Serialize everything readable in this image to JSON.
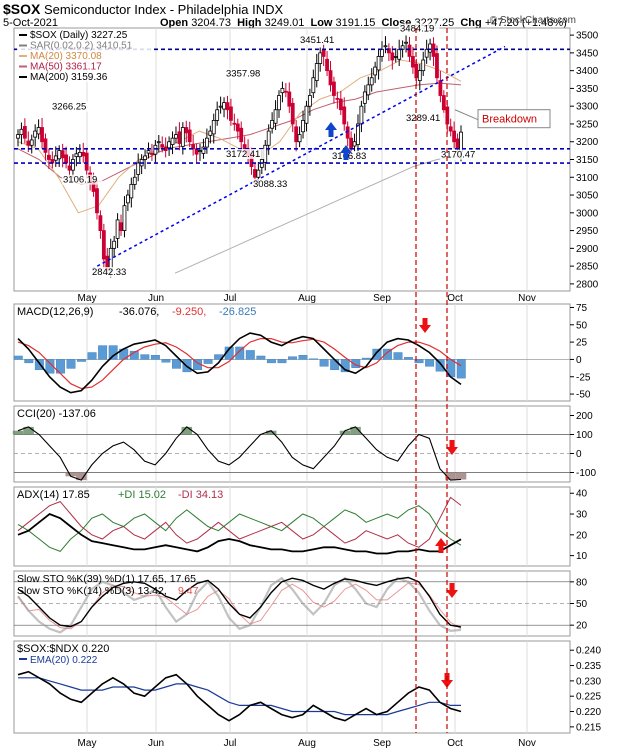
{
  "header": {
    "symbol": "$SOX",
    "name": "Semiconductor Index - Philadelphia",
    "exchange": "INDX",
    "date": "5-Oct-2021",
    "open_label": "Open",
    "open": "3204.73",
    "high_label": "High",
    "high": "3249.01",
    "low_label": "Low",
    "low": "3191.15",
    "close_label": "Close",
    "close": "3227.25",
    "chg_label": "Chg",
    "chg": "+47.20 (+1.48%)",
    "credit": "© StockCharts.com",
    "legend": [
      {
        "text": "$SOX (Daily) 3227.25",
        "color": "#000000"
      },
      {
        "text": "SAR(0.02,0.2) 3410.51",
        "color": "#808080"
      },
      {
        "text": "MA(20) 3370.08",
        "color": "#e0a060"
      },
      {
        "text": "MA(50) 3361.17",
        "color": "#b0204a"
      },
      {
        "text": "MA(200) 3159.36",
        "color": "#000000"
      }
    ]
  },
  "colors": {
    "up_candle": "#000000",
    "down_candle": "#cc0033",
    "support": "#0000bb",
    "trendline": "#0000ee",
    "vline": "#cc0000",
    "ma20": "#e0b080",
    "ma50": "#c06070",
    "ma200": "#b0b0b0",
    "macd": "#000000",
    "signal": "#e03030",
    "histogram": "#5b9bd5",
    "cci_fill": "#6a8f6a",
    "cci_neg_fill": "#a08080",
    "adx": "#000000",
    "plus_di": "#2e7d32",
    "minus_di": "#b0304a",
    "sto_k": "#000000",
    "sto_d": "#e05050",
    "ema": "#1a3a9a",
    "marker_red": "#ee1111",
    "marker_blue": "#1144cc"
  },
  "chart_data": [
    {
      "type": "candlestick",
      "title": "$SOX (Daily) 3227.25",
      "x_months": [
        "May",
        "Jun",
        "Jul",
        "Aug",
        "Sep",
        "Oct",
        "Nov"
      ],
      "ylim": [
        2780,
        3520
      ],
      "yticks": [
        2800,
        2850,
        2900,
        2950,
        3000,
        3050,
        3100,
        3150,
        3200,
        3250,
        3300,
        3350,
        3400,
        3450,
        3500
      ],
      "closes_approx": [
        3220,
        3235,
        3210,
        3190,
        3205,
        3230,
        3240,
        3200,
        3170,
        3150,
        3140,
        3160,
        3175,
        3155,
        3140,
        3120,
        3150,
        3166,
        3170,
        3160,
        3120,
        3090,
        3060,
        3000,
        2950,
        2870,
        2845,
        2900,
        2920,
        2980,
        2950,
        3020,
        3050,
        3080,
        3100,
        3140,
        3150,
        3160,
        3175,
        3165,
        3190,
        3200,
        3185,
        3175,
        3200,
        3210,
        3220,
        3195,
        3240,
        3225,
        3200,
        3180,
        3165,
        3175,
        3185,
        3210,
        3230,
        3260,
        3290,
        3300,
        3310,
        3290,
        3260,
        3250,
        3230,
        3200,
        3180,
        3160,
        3130,
        3100,
        3120,
        3150,
        3190,
        3230,
        3260,
        3290,
        3330,
        3350,
        3340,
        3300,
        3250,
        3200,
        3220,
        3260,
        3300,
        3330,
        3380,
        3420,
        3450,
        3440,
        3400,
        3360,
        3330,
        3320,
        3290,
        3250,
        3210,
        3180,
        3200,
        3250,
        3300,
        3340,
        3360,
        3380,
        3410,
        3440,
        3460,
        3470,
        3450,
        3430,
        3440,
        3460,
        3470,
        3480,
        3440,
        3410,
        3380,
        3400,
        3430,
        3460,
        3475,
        3440,
        3380,
        3330,
        3290,
        3250,
        3230,
        3200,
        3180,
        3227
      ],
      "annotations": [
        "3266.25",
        "3106.19",
        "2842.33",
        "3357.98",
        "3172.41",
        "3088.33",
        "3451.41",
        "3166.83",
        "3484.19",
        "3289.41",
        "3170.47",
        "Breakdown"
      ],
      "support_levels": [
        3180,
        3140
      ],
      "resistance_level": 3460,
      "trendline": {
        "from": [
          0,
          2842
        ],
        "to": [
          1,
          3460
        ]
      },
      "ma20_approx": [
        3200,
        3180,
        3100,
        3000,
        3020,
        3100,
        3150,
        3180,
        3200,
        3230,
        3210,
        3180,
        3160,
        3200,
        3280,
        3320,
        3340,
        3380,
        3400,
        3430,
        3420,
        3400,
        3370
      ],
      "ma50_approx": [
        3180,
        3150,
        3100,
        3080,
        3090,
        3120,
        3150,
        3180,
        3190,
        3200,
        3210,
        3220,
        3240,
        3260,
        3290,
        3310,
        3320,
        3340,
        3350,
        3360,
        3365,
        3360
      ],
      "ma200_approx": [
        2830,
        2860,
        2890,
        2920,
        2950,
        2980,
        3010,
        3040,
        3070,
        3100,
        3130,
        3150,
        3160
      ],
      "sar_last": 3410.51
    },
    {
      "type": "line",
      "title": "MACD(12,26,9) -36.076, -9.250, -26.825",
      "ylim": [
        -60,
        80
      ],
      "yticks": [
        -50,
        -25,
        0,
        25,
        50,
        75
      ],
      "series": [
        {
          "name": "MACD",
          "values": [
            30,
            15,
            -5,
            -25,
            -40,
            -48,
            -45,
            -30,
            -10,
            5,
            15,
            22,
            25,
            28,
            20,
            5,
            -10,
            -20,
            -18,
            -5,
            15,
            30,
            38,
            35,
            25,
            20,
            28,
            33,
            30,
            15,
            0,
            -15,
            -20,
            -10,
            10,
            25,
            30,
            28,
            20,
            10,
            -5,
            -25,
            -36
          ]
        },
        {
          "name": "Signal",
          "values": [
            25,
            20,
            10,
            -5,
            -20,
            -35,
            -42,
            -40,
            -30,
            -15,
            0,
            10,
            18,
            22,
            24,
            18,
            8,
            -5,
            -12,
            -12,
            -3,
            12,
            25,
            30,
            30,
            25,
            24,
            27,
            29,
            25,
            15,
            3,
            -8,
            -12,
            -5,
            10,
            20,
            25,
            25,
            20,
            12,
            0,
            -9
          ]
        }
      ]
    },
    {
      "type": "line",
      "title": "CCI(20) -137.06",
      "ylim": [
        -150,
        250
      ],
      "yticks": [
        -100,
        0,
        100,
        200
      ],
      "series": [
        {
          "name": "CCI",
          "values": [
            120,
            140,
            100,
            40,
            -20,
            -120,
            -140,
            -60,
            0,
            40,
            60,
            20,
            -40,
            -60,
            0,
            80,
            140,
            100,
            20,
            -40,
            -60,
            -20,
            40,
            100,
            120,
            60,
            -20,
            -60,
            -80,
            -20,
            40,
            120,
            140,
            80,
            20,
            -20,
            -40,
            40,
            100,
            80,
            -80,
            -140,
            -137
          ]
        }
      ]
    },
    {
      "type": "line",
      "title": "ADX(14) 17.85 +DI 15.02 -DI 34.13",
      "ylim": [
        5,
        43
      ],
      "yticks": [
        10,
        20,
        30,
        40
      ],
      "series": [
        {
          "name": "ADX",
          "values": [
            20,
            22,
            26,
            30,
            28,
            24,
            20,
            17,
            16,
            15,
            14,
            13,
            13,
            14,
            15,
            14,
            13,
            12,
            14,
            17,
            18,
            17,
            15,
            14,
            13,
            13,
            12,
            12,
            13,
            14,
            14,
            13,
            12,
            12,
            11,
            11,
            12,
            12,
            13,
            12,
            12,
            15,
            17.85
          ]
        },
        {
          "name": "+DI",
          "values": [
            25,
            22,
            18,
            14,
            12,
            18,
            22,
            28,
            30,
            26,
            24,
            28,
            30,
            26,
            22,
            28,
            32,
            28,
            24,
            22,
            26,
            30,
            28,
            26,
            24,
            22,
            26,
            30,
            28,
            24,
            28,
            32,
            30,
            26,
            28,
            30,
            28,
            32,
            34,
            30,
            22,
            18,
            15.02
          ]
        },
        {
          "name": "-DI",
          "values": [
            22,
            26,
            30,
            34,
            36,
            30,
            24,
            20,
            18,
            22,
            24,
            20,
            18,
            22,
            26,
            20,
            16,
            18,
            22,
            26,
            22,
            18,
            20,
            22,
            24,
            26,
            22,
            18,
            20,
            24,
            20,
            16,
            18,
            22,
            20,
            18,
            20,
            16,
            14,
            18,
            28,
            38,
            34.13
          ]
        }
      ]
    },
    {
      "type": "line",
      "title": "Slow STO %K(39) %D(1) 17.65, 17.65 | Slow STO %K(14) %D(3) 13.42, 9.47",
      "ylim": [
        5,
        95
      ],
      "yticks": [
        20,
        50,
        80
      ],
      "series": [
        {
          "name": "%K(39)",
          "values": [
            70,
            60,
            45,
            30,
            20,
            18,
            25,
            45,
            60,
            72,
            78,
            80,
            78,
            70,
            60,
            55,
            68,
            78,
            82,
            70,
            50,
            35,
            30,
            45,
            65,
            80,
            85,
            82,
            75,
            70,
            78,
            84,
            82,
            78,
            75,
            80,
            84,
            86,
            80,
            60,
            35,
            20,
            17.65
          ]
        },
        {
          "name": "%K(14)",
          "values": [
            60,
            40,
            25,
            15,
            10,
            20,
            45,
            70,
            80,
            75,
            65,
            55,
            60,
            70,
            45,
            25,
            35,
            65,
            80,
            60,
            30,
            15,
            20,
            45,
            75,
            85,
            70,
            50,
            35,
            50,
            75,
            85,
            70,
            50,
            45,
            70,
            85,
            80,
            65,
            40,
            20,
            12,
            13.42
          ]
        }
      ]
    },
    {
      "type": "line",
      "title": "$SOX:$NDX 0.220",
      "ylim": [
        0.213,
        0.243
      ],
      "yticks": [
        0.215,
        0.22,
        0.225,
        0.23,
        0.235,
        0.24
      ],
      "series": [
        {
          "name": "$SOX:$NDX",
          "values": [
            0.232,
            0.233,
            0.231,
            0.229,
            0.226,
            0.224,
            0.223,
            0.226,
            0.229,
            0.231,
            0.229,
            0.226,
            0.225,
            0.228,
            0.231,
            0.232,
            0.229,
            0.225,
            0.222,
            0.219,
            0.217,
            0.219,
            0.222,
            0.223,
            0.221,
            0.219,
            0.218,
            0.219,
            0.222,
            0.22,
            0.218,
            0.217,
            0.219,
            0.221,
            0.219,
            0.22,
            0.223,
            0.226,
            0.228,
            0.227,
            0.223,
            0.221,
            0.22
          ]
        },
        {
          "name": "EMA(20) 0.222",
          "values": [
            0.231,
            0.231,
            0.231,
            0.23,
            0.229,
            0.228,
            0.227,
            0.227,
            0.227,
            0.228,
            0.228,
            0.228,
            0.227,
            0.227,
            0.228,
            0.229,
            0.229,
            0.228,
            0.227,
            0.225,
            0.223,
            0.222,
            0.222,
            0.222,
            0.222,
            0.221,
            0.22,
            0.22,
            0.22,
            0.22,
            0.22,
            0.219,
            0.219,
            0.219,
            0.219,
            0.219,
            0.22,
            0.221,
            0.222,
            0.223,
            0.223,
            0.222,
            0.222
          ]
        }
      ]
    }
  ],
  "labels": {
    "breakdown": "Breakdown",
    "p1_legend": [
      "$SOX (Daily) 3227.25",
      "SAR(0.02,0.2) 3410.51",
      "MA(20) 3370.08",
      "MA(50) 3361.17",
      "MA(200) 3159.36"
    ],
    "macd_title": "MACD(12,26,9)",
    "macd_vals": [
      "-36.076,",
      "-9.250,",
      "-26.825"
    ],
    "cci_title": "CCI(20) -137.06",
    "adx_title": "ADX(14) 17.85",
    "adx_plus": "+DI 15.02",
    "adx_minus": "-DI 34.13",
    "sto1": "Slow STO %K(39) %D(1) 17.65, 17.65",
    "sto2a": "Slow STO %K(14) %D(3) 13.42,",
    "sto2b": "9.47",
    "ratio_title": "$SOX:$NDX 0.220",
    "ratio_ema": "EMA(20) 0.222"
  }
}
